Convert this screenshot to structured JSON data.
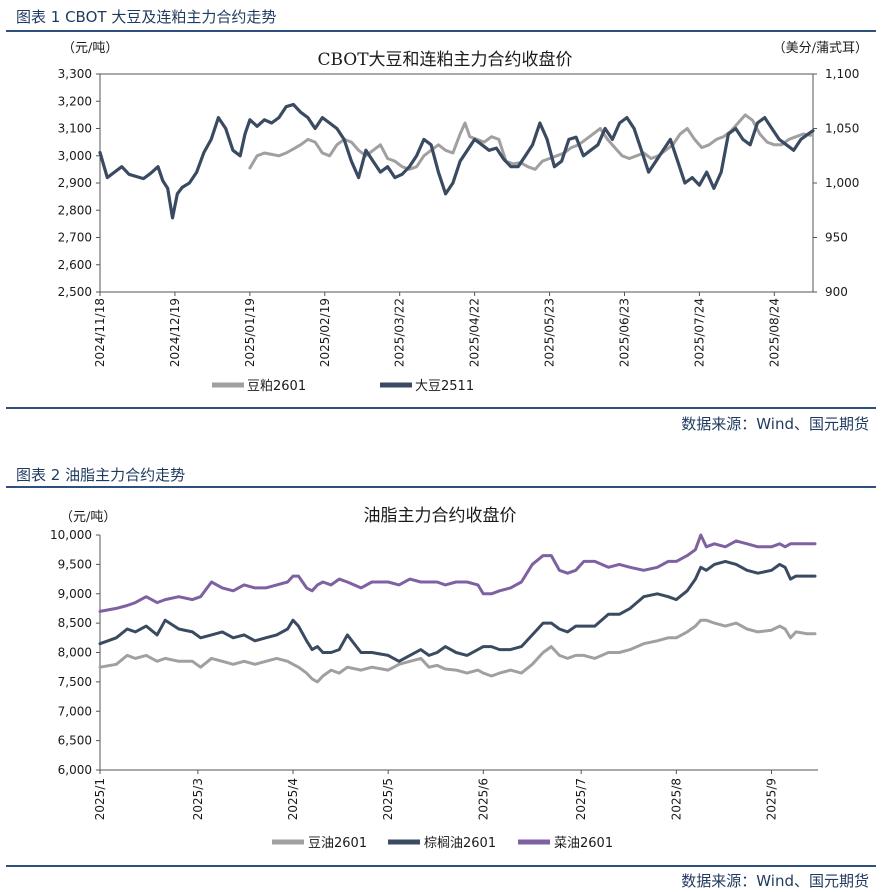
{
  "figures": [
    {
      "heading": "图表 1 CBOT 大豆及连粕主力合约走势",
      "source": "数据来源：Wind、国元期货"
    },
    {
      "heading": "图表 2 油脂主力合约走势",
      "source": "数据来源：Wind、国元期货"
    }
  ],
  "colors": {
    "navy": "#3a4a60",
    "gray": "#a0a0a0",
    "purple": "#7d61a0",
    "rule": "#2f4f7f"
  },
  "chart_data": [
    {
      "type": "line",
      "title": "CBOT大豆和连粕主力合约收盘价",
      "ylabel_left": "（元/吨）",
      "ylabel_right": "（美分/蒲式耳）",
      "ylim_left": [
        2500,
        3300
      ],
      "ylim_right": [
        900,
        1100
      ],
      "yticks_left": [
        2500,
        2600,
        2700,
        2800,
        2900,
        3000,
        3100,
        3200,
        3300
      ],
      "yticks_left_labels": [
        "2,500",
        "2,600",
        "2,700",
        "2,800",
        "2,900",
        "3,000",
        "3,100",
        "3,200",
        "3,300"
      ],
      "yticks_right": [
        900,
        950,
        1000,
        1050,
        1100
      ],
      "yticks_right_labels": [
        "900",
        "950",
        "1,000",
        "1,050",
        "1,100"
      ],
      "xlim_days": [
        0,
        295
      ],
      "xticks": [
        {
          "day": 0,
          "label": "2024/11/18"
        },
        {
          "day": 31,
          "label": "2024/12/19"
        },
        {
          "day": 62,
          "label": "2025/01/19"
        },
        {
          "day": 93,
          "label": "2025/02/19"
        },
        {
          "day": 124,
          "label": "2025/03/22"
        },
        {
          "day": 155,
          "label": "2025/04/22"
        },
        {
          "day": 186,
          "label": "2025/05/23"
        },
        {
          "day": 217,
          "label": "2025/06/23"
        },
        {
          "day": 248,
          "label": "2025/07/24"
        },
        {
          "day": 279,
          "label": "2025/08/24"
        }
      ],
      "grid": false,
      "legend": "bottom",
      "series": [
        {
          "name": "豆粕2601",
          "axis": "left",
          "color": "#a0a0a0",
          "x": [
            62,
            65,
            68,
            71,
            74,
            77,
            80,
            83,
            86,
            89,
            92,
            95,
            98,
            101,
            104,
            107,
            110,
            113,
            116,
            119,
            122,
            125,
            128,
            131,
            134,
            137,
            140,
            143,
            146,
            149,
            151,
            153,
            156,
            159,
            162,
            165,
            168,
            171,
            174,
            177,
            180,
            183,
            186,
            189,
            192,
            195,
            198,
            201,
            204,
            207,
            210,
            213,
            216,
            219,
            222,
            225,
            228,
            231,
            234,
            237,
            240,
            243,
            246,
            249,
            252,
            255,
            258,
            261,
            264,
            267,
            270,
            273,
            276,
            279,
            282,
            285,
            288,
            291,
            294
          ],
          "y": [
            2955,
            3000,
            3010,
            3005,
            3000,
            3010,
            3025,
            3040,
            3060,
            3050,
            3010,
            3000,
            3040,
            3060,
            3050,
            3020,
            3000,
            3020,
            3040,
            2990,
            2980,
            2960,
            2950,
            2960,
            3000,
            3020,
            3040,
            3020,
            3010,
            3080,
            3120,
            3070,
            3060,
            3050,
            3070,
            3060,
            2980,
            2970,
            2975,
            2960,
            2950,
            2980,
            2990,
            3000,
            3010,
            3030,
            3040,
            3060,
            3080,
            3100,
            3060,
            3030,
            3000,
            2990,
            3000,
            3010,
            2990,
            3000,
            3020,
            3040,
            3080,
            3100,
            3060,
            3030,
            3040,
            3060,
            3070,
            3090,
            3120,
            3150,
            3130,
            3080,
            3050,
            3040,
            3040,
            3060,
            3070,
            3080,
            3075
          ]
        },
        {
          "name": "大豆2511",
          "axis": "right",
          "color": "#3a4a60",
          "x": [
            0,
            3,
            6,
            9,
            12,
            15,
            18,
            21,
            24,
            26,
            28,
            30,
            32,
            34,
            37,
            40,
            43,
            46,
            49,
            52,
            55,
            58,
            60,
            62,
            65,
            68,
            71,
            74,
            77,
            80,
            83,
            86,
            89,
            92,
            95,
            98,
            101,
            104,
            107,
            110,
            113,
            116,
            119,
            122,
            125,
            128,
            131,
            134,
            137,
            140,
            143,
            146,
            149,
            152,
            155,
            158,
            161,
            164,
            167,
            170,
            173,
            176,
            179,
            182,
            185,
            188,
            191,
            194,
            197,
            200,
            203,
            206,
            209,
            212,
            215,
            218,
            221,
            224,
            227,
            230,
            233,
            236,
            239,
            242,
            245,
            248,
            251,
            254,
            257,
            260,
            263,
            266,
            269,
            272,
            275,
            278,
            281,
            284,
            287,
            290,
            293,
            295
          ],
          "y": [
            1028,
            1005,
            1010,
            1015,
            1008,
            1006,
            1004,
            1009,
            1015,
            1002,
            995,
            968,
            990,
            996,
            1000,
            1010,
            1028,
            1040,
            1060,
            1050,
            1030,
            1025,
            1045,
            1058,
            1052,
            1058,
            1055,
            1060,
            1070,
            1072,
            1065,
            1060,
            1050,
            1060,
            1055,
            1050,
            1040,
            1020,
            1005,
            1030,
            1020,
            1010,
            1015,
            1005,
            1008,
            1015,
            1025,
            1040,
            1035,
            1010,
            990,
            1000,
            1020,
            1030,
            1040,
            1035,
            1030,
            1032,
            1022,
            1015,
            1015,
            1025,
            1035,
            1055,
            1040,
            1015,
            1020,
            1040,
            1042,
            1025,
            1030,
            1035,
            1050,
            1040,
            1055,
            1060,
            1050,
            1030,
            1010,
            1020,
            1030,
            1040,
            1020,
            1000,
            1005,
            998,
            1010,
            995,
            1010,
            1045,
            1050,
            1040,
            1035,
            1055,
            1060,
            1050,
            1040,
            1035,
            1030,
            1040,
            1045,
            1048
          ]
        }
      ]
    },
    {
      "type": "line",
      "title": "油脂主力合约收盘价",
      "ylabel": "（元/吨）",
      "ylim": [
        6000,
        10000
      ],
      "yticks": [
        6000,
        6500,
        7000,
        7500,
        8000,
        8500,
        9000,
        9500,
        10000
      ],
      "yticks_labels": [
        "6,000",
        "6,500",
        "7,000",
        "7,500",
        "8,000",
        "8,500",
        "9,000",
        "9,500",
        "10,000"
      ],
      "xlim_days": [
        0,
        263
      ],
      "xticks": [
        {
          "day": 0,
          "label": "2025/1"
        },
        {
          "day": 36,
          "label": "2025/3"
        },
        {
          "day": 71,
          "label": "2025/4"
        },
        {
          "day": 106,
          "label": "2025/5"
        },
        {
          "day": 141,
          "label": "2025/6"
        },
        {
          "day": 177,
          "label": "2025/7"
        },
        {
          "day": 212,
          "label": "2025/8"
        },
        {
          "day": 247,
          "label": "2025/9"
        }
      ],
      "grid": false,
      "legend": "bottom",
      "series": [
        {
          "name": "豆油2601",
          "color": "#a0a0a0",
          "x": [
            0,
            6,
            10,
            13,
            17,
            21,
            24,
            29,
            34,
            37,
            41,
            45,
            49,
            53,
            57,
            61,
            65,
            69,
            71,
            73,
            76,
            78,
            80,
            82,
            85,
            88,
            91,
            96,
            100,
            106,
            110,
            114,
            118,
            121,
            124,
            127,
            131,
            135,
            139,
            141,
            144,
            147,
            151,
            155,
            159,
            163,
            166,
            169,
            172,
            175,
            178,
            182,
            187,
            191,
            195,
            200,
            205,
            209,
            212,
            216,
            219,
            221,
            223,
            226,
            230,
            234,
            238,
            242,
            247,
            250,
            252,
            254,
            256,
            260,
            263
          ],
          "y": [
            7750,
            7800,
            7950,
            7900,
            7950,
            7850,
            7900,
            7850,
            7850,
            7750,
            7900,
            7850,
            7800,
            7850,
            7800,
            7850,
            7900,
            7850,
            7800,
            7750,
            7650,
            7550,
            7500,
            7600,
            7700,
            7650,
            7750,
            7700,
            7750,
            7700,
            7800,
            7850,
            7900,
            7750,
            7780,
            7720,
            7700,
            7650,
            7700,
            7650,
            7600,
            7650,
            7700,
            7650,
            7800,
            8000,
            8100,
            7950,
            7900,
            7950,
            7950,
            7900,
            8000,
            8000,
            8050,
            8150,
            8200,
            8250,
            8250,
            8350,
            8450,
            8550,
            8550,
            8500,
            8450,
            8500,
            8400,
            8350,
            8380,
            8450,
            8400,
            8250,
            8350,
            8320,
            8320
          ]
        },
        {
          "name": "棕榈油2601",
          "color": "#3a4a60",
          "x": [
            0,
            6,
            10,
            13,
            17,
            21,
            24,
            29,
            34,
            37,
            41,
            45,
            49,
            53,
            57,
            61,
            65,
            69,
            71,
            73,
            76,
            78,
            80,
            82,
            85,
            88,
            91,
            96,
            100,
            106,
            110,
            114,
            118,
            121,
            124,
            127,
            131,
            135,
            139,
            141,
            144,
            147,
            151,
            155,
            159,
            163,
            166,
            169,
            172,
            175,
            178,
            182,
            187,
            191,
            195,
            200,
            205,
            209,
            212,
            216,
            219,
            221,
            223,
            226,
            230,
            234,
            238,
            242,
            247,
            250,
            252,
            254,
            256,
            260,
            263
          ],
          "y": [
            8150,
            8250,
            8400,
            8350,
            8450,
            8300,
            8550,
            8400,
            8350,
            8250,
            8300,
            8350,
            8250,
            8300,
            8200,
            8250,
            8300,
            8400,
            8550,
            8450,
            8200,
            8050,
            8100,
            8000,
            8000,
            8050,
            8300,
            8000,
            8000,
            7950,
            7850,
            7950,
            8050,
            7950,
            8000,
            8100,
            8000,
            7950,
            8050,
            8100,
            8100,
            8050,
            8050,
            8100,
            8300,
            8500,
            8500,
            8400,
            8350,
            8450,
            8450,
            8450,
            8650,
            8650,
            8750,
            8950,
            9000,
            8950,
            8900,
            9050,
            9250,
            9450,
            9400,
            9500,
            9550,
            9500,
            9400,
            9350,
            9400,
            9500,
            9450,
            9250,
            9300,
            9300,
            9300
          ]
        },
        {
          "name": "菜油2601",
          "color": "#7d61a0",
          "x": [
            0,
            6,
            10,
            13,
            17,
            21,
            24,
            29,
            34,
            37,
            41,
            45,
            49,
            53,
            57,
            61,
            65,
            69,
            71,
            73,
            76,
            78,
            80,
            82,
            85,
            88,
            91,
            96,
            100,
            106,
            110,
            114,
            118,
            121,
            124,
            127,
            131,
            135,
            139,
            141,
            144,
            147,
            151,
            155,
            159,
            163,
            166,
            169,
            172,
            175,
            178,
            182,
            187,
            191,
            195,
            200,
            205,
            209,
            212,
            216,
            219,
            221,
            223,
            226,
            230,
            234,
            238,
            242,
            247,
            250,
            252,
            254,
            256,
            260,
            263
          ],
          "y": [
            8700,
            8750,
            8800,
            8850,
            8950,
            8850,
            8900,
            8950,
            8900,
            8950,
            9200,
            9100,
            9050,
            9150,
            9100,
            9100,
            9150,
            9200,
            9300,
            9300,
            9100,
            9050,
            9150,
            9200,
            9150,
            9250,
            9200,
            9100,
            9200,
            9200,
            9150,
            9250,
            9200,
            9200,
            9200,
            9150,
            9200,
            9200,
            9150,
            9000,
            9000,
            9050,
            9100,
            9200,
            9500,
            9650,
            9650,
            9400,
            9350,
            9400,
            9550,
            9550,
            9450,
            9500,
            9450,
            9400,
            9450,
            9550,
            9550,
            9650,
            9750,
            10000,
            9800,
            9850,
            9800,
            9900,
            9850,
            9800,
            9800,
            9850,
            9800,
            9850,
            9850,
            9850,
            9850
          ]
        }
      ]
    }
  ]
}
